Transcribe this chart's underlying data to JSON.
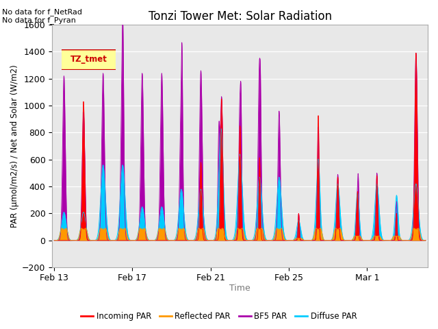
{
  "title": "Tonzi Tower Met: Solar Radiation",
  "xlabel": "Time",
  "ylabel": "PAR (μmol/m2/s) / Net and Solar (W/m2)",
  "ylim": [
    -200,
    1600
  ],
  "yticks": [
    -200,
    0,
    200,
    400,
    600,
    800,
    1000,
    1200,
    1400,
    1600
  ],
  "bg_color": "#e8e8e8",
  "no_data_text1": "No data for f_NetRad",
  "no_data_text2": "No data for f_Pyran",
  "legend_label": "TZ_tmet",
  "legend_box_facecolor": "#ffff99",
  "legend_box_edgecolor": "#cc0000",
  "colors": {
    "incoming": "#ff0000",
    "reflected": "#ff9900",
    "bfs5": "#aa00aa",
    "diffuse": "#00ccff"
  },
  "xtick_labels": [
    "Feb 13",
    "Feb 17",
    "Feb 21",
    "Feb 25",
    "Mar 1"
  ],
  "xtick_positions": [
    0,
    4,
    8,
    12,
    16
  ],
  "days": 19
}
